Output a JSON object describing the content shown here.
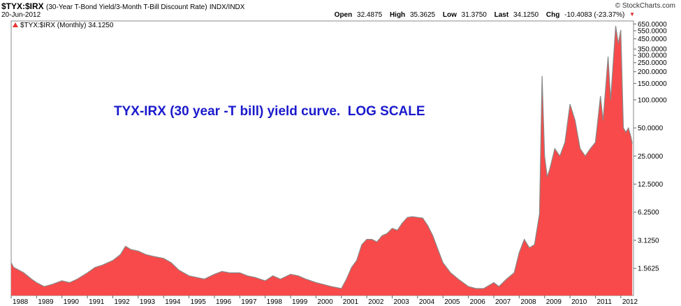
{
  "header": {
    "symbol": "$TYX:$IRX",
    "description": "(30-Year T-Bond Yield/3-Month T-Bill Discount Rate)",
    "exchange": "INDX/INDX",
    "date": "20-Jun-2012",
    "brand": "© StockCharts.com",
    "quote": {
      "open_label": "Open",
      "open": "32.4875",
      "high_label": "High",
      "high": "35.3625",
      "low_label": "Low",
      "low": "31.3750",
      "last_label": "Last",
      "last": "34.1250",
      "chg_label": "Chg",
      "chg": "-10.4083 (-23.37%)"
    }
  },
  "legend": {
    "text": "$TYX:$IRX (Monthly) 34.1250",
    "icon": "red-triangle-icon"
  },
  "annotation": "TYX-IRX (30 year -T bill) yield curve.  LOG SCALE",
  "colors": {
    "fill": "#f84a4a",
    "line": "#888888",
    "annotation": "#1a1acc",
    "down": "#dd2222"
  },
  "chart_data": {
    "type": "area",
    "y_scale": "log",
    "ylim": [
      0.8,
      700
    ],
    "y_ticks": [
      "1.5625",
      "3.1250",
      "6.2500",
      "12.5000",
      "25.0000",
      "50.0000",
      "100.0000",
      "150.0000",
      "200.0000",
      "250.0000",
      "300.0000",
      "350.0000",
      "450.0000",
      "550.0000",
      "650.0000"
    ],
    "x_ticks": [
      "1988",
      "1989",
      "1990",
      "1991",
      "1992",
      "1993",
      "1994",
      "1995",
      "1996",
      "1997",
      "1998",
      "1999",
      "2000",
      "2001",
      "2002",
      "2003",
      "2004",
      "2005",
      "2006",
      "2007",
      "2008",
      "2009",
      "2010",
      "2011",
      "2012"
    ],
    "xlim": [
      1988.0,
      2012.5
    ],
    "grid": false,
    "series": [
      {
        "x": [
          1988.0,
          1988.1,
          1988.3,
          1988.5,
          1988.8,
          1989.0,
          1989.3,
          1989.6,
          1990.0,
          1990.3,
          1990.6,
          1991.0,
          1991.3,
          1991.6,
          1992.0,
          1992.3,
          1992.5,
          1992.7,
          1993.0,
          1993.3,
          1993.6,
          1994.0,
          1994.3,
          1994.6,
          1995.0,
          1995.3,
          1995.6,
          1996.0,
          1996.3,
          1996.6,
          1997.0,
          1997.3,
          1997.6,
          1998.0,
          1998.3,
          1998.6,
          1999.0,
          1999.3,
          1999.6,
          2000.0,
          2000.3,
          2000.6,
          2001.0,
          2001.2,
          2001.4,
          2001.6,
          2001.8,
          2002.0,
          2002.2,
          2002.4,
          2002.6,
          2002.8,
          2003.0,
          2003.2,
          2003.4,
          2003.6,
          2003.8,
          2004.0,
          2004.2,
          2004.4,
          2004.6,
          2004.8,
          2005.0,
          2005.3,
          2005.6,
          2006.0,
          2006.3,
          2006.6,
          2007.0,
          2007.2,
          2007.5,
          2007.8,
          2008.0,
          2008.2,
          2008.4,
          2008.6,
          2008.8,
          2008.9,
          2009.0,
          2009.1,
          2009.2,
          2009.4,
          2009.6,
          2009.8,
          2010.0,
          2010.2,
          2010.4,
          2010.6,
          2010.8,
          2011.0,
          2011.2,
          2011.3,
          2011.5,
          2011.6,
          2011.7,
          2011.8,
          2011.9,
          2012.0,
          2012.1,
          2012.2,
          2012.3,
          2012.4,
          2012.45
        ],
        "values": [
          1.8,
          1.6,
          1.5,
          1.4,
          1.2,
          1.1,
          1.0,
          1.05,
          1.15,
          1.1,
          1.2,
          1.4,
          1.6,
          1.7,
          1.9,
          2.2,
          2.7,
          2.5,
          2.4,
          2.2,
          2.1,
          2.0,
          1.8,
          1.5,
          1.3,
          1.25,
          1.2,
          1.35,
          1.45,
          1.4,
          1.4,
          1.3,
          1.25,
          1.15,
          1.3,
          1.2,
          1.35,
          1.3,
          1.2,
          1.1,
          1.05,
          1.0,
          0.95,
          1.2,
          1.6,
          1.9,
          2.8,
          3.2,
          3.2,
          3.0,
          3.5,
          3.7,
          4.2,
          4.0,
          4.8,
          5.5,
          5.6,
          5.5,
          5.4,
          4.5,
          3.5,
          2.5,
          1.8,
          1.4,
          1.2,
          1.0,
          0.95,
          0.95,
          1.1,
          1.0,
          1.2,
          1.4,
          2.3,
          3.2,
          2.6,
          2.8,
          6.0,
          180,
          25,
          15,
          18,
          30,
          25,
          35,
          90,
          60,
          30,
          25,
          30,
          35,
          110,
          60,
          290,
          100,
          250,
          620,
          400,
          560,
          50,
          45,
          50,
          40,
          34.125
        ]
      }
    ]
  }
}
